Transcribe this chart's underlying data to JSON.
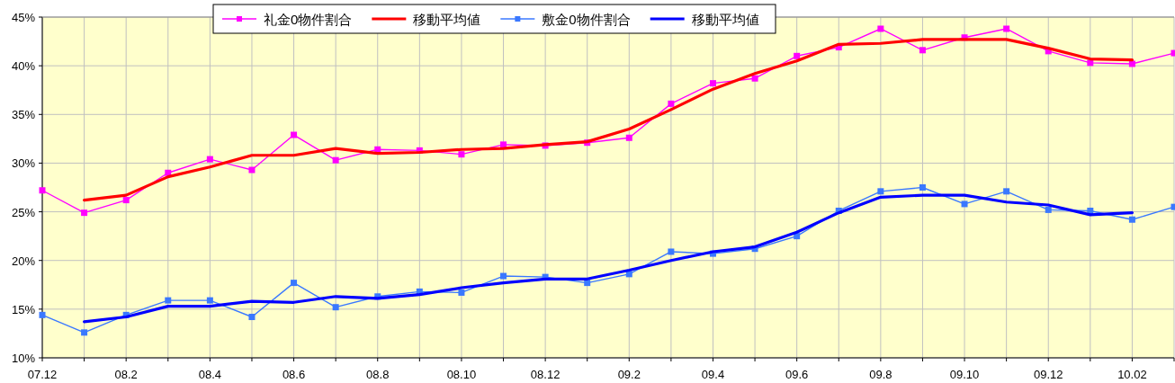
{
  "chart_data": {
    "type": "line",
    "categories": [
      "07.12",
      null,
      "08.2",
      null,
      "08.4",
      null,
      "08.6",
      null,
      "08.8",
      null,
      "08.10",
      null,
      "08.12",
      null,
      "09.2",
      null,
      "09.4",
      null,
      "09.6",
      null,
      "09.8",
      null,
      "09.10",
      null,
      "09.12",
      null,
      "10.02",
      null
    ],
    "series": [
      {
        "name": "礼金0物件割合",
        "color": "#ff00ff",
        "marker": "square",
        "values": [
          27.2,
          24.9,
          26.2,
          29.0,
          30.4,
          29.3,
          32.9,
          30.3,
          31.4,
          31.3,
          30.9,
          31.9,
          31.8,
          32.1,
          32.6,
          36.1,
          38.2,
          38.7,
          41.0,
          41.9,
          43.8,
          41.6,
          42.9,
          43.8,
          41.5,
          40.3,
          40.2,
          41.3
        ]
      },
      {
        "name": "移動平均値",
        "color": "#ff0000",
        "marker": "none",
        "values": [
          null,
          26.2,
          26.7,
          28.6,
          29.6,
          30.8,
          30.8,
          31.5,
          31.0,
          31.1,
          31.4,
          31.5,
          31.9,
          32.2,
          33.5,
          35.5,
          37.6,
          39.2,
          40.5,
          42.2,
          42.3,
          42.7,
          42.7,
          42.7,
          41.8,
          40.7,
          40.6,
          null
        ]
      },
      {
        "name": "敷金0物件割合",
        "color": "#3a78ff",
        "marker": "square",
        "values": [
          14.4,
          12.6,
          14.4,
          15.9,
          15.9,
          14.2,
          17.7,
          15.2,
          16.3,
          16.8,
          16.7,
          18.4,
          18.3,
          17.7,
          18.6,
          20.9,
          20.7,
          21.2,
          22.5,
          25.1,
          27.1,
          27.5,
          25.8,
          27.1,
          25.2,
          25.1,
          24.2,
          25.5
        ]
      },
      {
        "name": "移動平均値",
        "color": "#0000ff",
        "marker": "none",
        "values": [
          null,
          13.7,
          14.2,
          15.3,
          15.3,
          15.8,
          15.7,
          16.3,
          16.1,
          16.5,
          17.2,
          17.7,
          18.1,
          18.1,
          19.0,
          20.0,
          20.9,
          21.4,
          22.9,
          24.9,
          26.5,
          26.7,
          26.7,
          26.0,
          25.7,
          24.7,
          24.9,
          null
        ]
      }
    ],
    "ylim": [
      10,
      45
    ],
    "yticks": [
      {
        "value": 10,
        "label": "10%"
      },
      {
        "value": 15,
        "label": "15%"
      },
      {
        "value": 20,
        "label": "20%"
      },
      {
        "value": 25,
        "label": "25%"
      },
      {
        "value": 30,
        "label": "30%"
      },
      {
        "value": 35,
        "label": "35%"
      },
      {
        "value": 40,
        "label": "40%"
      },
      {
        "value": 45,
        "label": "45%"
      }
    ],
    "grid": true,
    "legend": "top"
  }
}
